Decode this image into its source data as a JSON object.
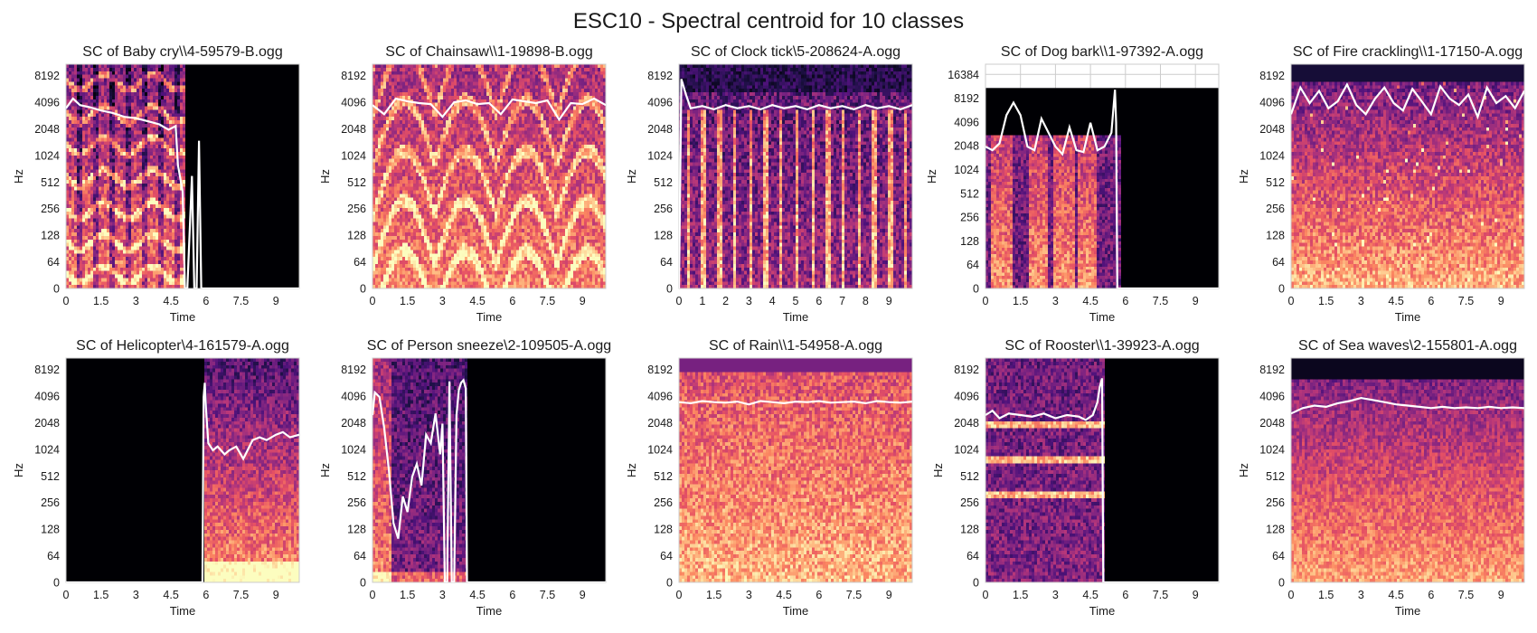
{
  "figure": {
    "title": "ESC10 - Spectral centroid for 10 classes",
    "colors": {
      "centroid_line": "#ffffff",
      "background": "#000000",
      "grid": "#cccccc"
    },
    "colormap": "magma"
  },
  "chart_data": [
    {
      "type": "heatmap",
      "title": "SC of Baby cry\\\\4-59579-B.ogg",
      "xlabel": "Time",
      "ylabel": "Hz",
      "xticks": [
        "0",
        "1.5",
        "3",
        "4.5",
        "6",
        "7.5",
        "9"
      ],
      "xtick_values": [
        0,
        1.5,
        3,
        4.5,
        6,
        7.5,
        9
      ],
      "yticks": [
        "0",
        "64",
        "128",
        "256",
        "512",
        "1024",
        "2048",
        "4096",
        "8192"
      ],
      "xlim": [
        0,
        10
      ],
      "ylim_hz": [
        0,
        11025
      ],
      "signal_end": 5.0,
      "grid": false,
      "style": "harmonic",
      "centroid": {
        "x": [
          0,
          0.3,
          0.6,
          1,
          1.5,
          2,
          2.5,
          3,
          3.5,
          4,
          4.4,
          4.7,
          4.8,
          5.0,
          5.1,
          5.2,
          5.4,
          5.5,
          5.6,
          5.7,
          5.8,
          5.9,
          10
        ],
        "y": [
          3500,
          4500,
          3800,
          3600,
          3300,
          3100,
          2800,
          2700,
          2500,
          2300,
          2000,
          2200,
          800,
          400,
          0,
          0,
          600,
          0,
          0,
          1500,
          0,
          0,
          0
        ]
      }
    },
    {
      "type": "heatmap",
      "title": "SC of Chainsaw\\\\1-19898-B.ogg",
      "xlabel": "Time",
      "ylabel": "Hz",
      "xticks": [
        "0",
        "1.5",
        "3",
        "4.5",
        "6",
        "7.5",
        "9"
      ],
      "xtick_values": [
        0,
        1.5,
        3,
        4.5,
        6,
        7.5,
        9
      ],
      "yticks": [
        "0",
        "64",
        "128",
        "256",
        "512",
        "1024",
        "2048",
        "4096",
        "8192"
      ],
      "xlim": [
        0,
        10
      ],
      "ylim_hz": [
        0,
        11025
      ],
      "signal_end": 10.0,
      "grid": false,
      "style": "chainsaw",
      "centroid": {
        "x": [
          0,
          0.5,
          1,
          1.5,
          2,
          2.5,
          3,
          3.5,
          4,
          4.5,
          5,
          5.5,
          6,
          6.5,
          7,
          7.5,
          8,
          8.5,
          9,
          9.5,
          10
        ],
        "y": [
          3800,
          3000,
          4500,
          4200,
          4000,
          3900,
          2800,
          4100,
          4300,
          3900,
          4000,
          3000,
          4400,
          4200,
          4000,
          4300,
          2600,
          4000,
          3900,
          4500,
          3800
        ]
      }
    },
    {
      "type": "heatmap",
      "title": "SC of Clock tick\\5-208624-A.ogg",
      "xlabel": "Time",
      "ylabel": "Hz",
      "xticks": [
        "0",
        "1",
        "2",
        "3",
        "4",
        "5",
        "6",
        "7",
        "8",
        "9"
      ],
      "xtick_values": [
        0,
        1,
        2,
        3,
        4,
        5,
        6,
        7,
        8,
        9
      ],
      "yticks": [
        "0",
        "64",
        "128",
        "256",
        "512",
        "1024",
        "2048",
        "4096",
        "8192"
      ],
      "xlim": [
        0,
        10
      ],
      "ylim_hz": [
        0,
        11025
      ],
      "signal_end": 10.0,
      "grid": false,
      "style": "clock",
      "centroid": {
        "x": [
          0,
          0.1,
          0.3,
          0.5,
          1,
          1.5,
          2,
          2.5,
          3,
          3.5,
          4,
          4.5,
          5,
          5.5,
          6,
          6.5,
          7,
          7.5,
          8,
          8.5,
          9,
          9.5,
          10
        ],
        "y": [
          0,
          7500,
          5000,
          3500,
          3700,
          3400,
          3800,
          3500,
          3700,
          3400,
          3800,
          3500,
          3700,
          3400,
          3800,
          3500,
          3700,
          3400,
          3800,
          3500,
          3700,
          3400,
          3800
        ]
      }
    },
    {
      "type": "heatmap",
      "title": "SC of Dog bark\\\\1-97392-A.ogg",
      "xlabel": "Time",
      "ylabel": "Hz",
      "xticks": [
        "0",
        "1.5",
        "3",
        "4.5",
        "6",
        "7.5",
        "9"
      ],
      "xtick_values": [
        0,
        1.5,
        3,
        4.5,
        6,
        7.5,
        9
      ],
      "yticks": [
        "0",
        "64",
        "128",
        "256",
        "512",
        "1024",
        "2048",
        "4096",
        "8192",
        "16384"
      ],
      "xlim": [
        0,
        10
      ],
      "ylim_hz": [
        0,
        22050
      ],
      "signal_end": 5.7,
      "grid": true,
      "style": "dog",
      "centroid": {
        "x": [
          0,
          0.3,
          0.6,
          0.9,
          1.2,
          1.5,
          1.8,
          2.1,
          2.4,
          2.7,
          3.0,
          3.3,
          3.6,
          3.9,
          4.2,
          4.5,
          4.8,
          5.1,
          5.4,
          5.55,
          5.6,
          5.65,
          5.7,
          10
        ],
        "y": [
          2000,
          1800,
          2200,
          5000,
          7200,
          5000,
          2000,
          1800,
          4500,
          3000,
          2000,
          1600,
          3500,
          1800,
          1700,
          4000,
          1800,
          2000,
          3000,
          10500,
          4000,
          0,
          0,
          0
        ]
      }
    },
    {
      "type": "heatmap",
      "title": "SC of Fire crackling\\\\1-17150-A.ogg",
      "xlabel": "Time",
      "ylabel": "Hz",
      "xticks": [
        "0",
        "1.5",
        "3",
        "4.5",
        "6",
        "7.5",
        "9"
      ],
      "xtick_values": [
        0,
        1.5,
        3,
        4.5,
        6,
        7.5,
        9
      ],
      "yticks": [
        "0",
        "64",
        "128",
        "256",
        "512",
        "1024",
        "2048",
        "4096",
        "8192"
      ],
      "xlim": [
        0,
        10
      ],
      "ylim_hz": [
        0,
        11025
      ],
      "signal_end": 10.0,
      "grid": false,
      "style": "fire",
      "centroid": {
        "x": [
          0,
          0.4,
          0.8,
          1.2,
          1.6,
          2,
          2.4,
          2.8,
          3.2,
          3.6,
          4,
          4.4,
          4.8,
          5.2,
          5.6,
          6,
          6.4,
          6.8,
          7.2,
          7.6,
          8,
          8.4,
          8.8,
          9.2,
          9.6,
          10
        ],
        "y": [
          3000,
          6000,
          4000,
          5500,
          3500,
          4200,
          6500,
          3800,
          3000,
          4500,
          6000,
          4000,
          3300,
          5800,
          4200,
          3000,
          6200,
          4500,
          3800,
          5000,
          2800,
          6000,
          4000,
          4800,
          3500,
          5500
        ]
      }
    },
    {
      "type": "heatmap",
      "title": "SC of Helicopter\\4-161579-A.ogg",
      "xlabel": "Time",
      "ylabel": "Hz",
      "xticks": [
        "0",
        "1.5",
        "3",
        "4.5",
        "6",
        "7.5",
        "9"
      ],
      "xtick_values": [
        0,
        1.5,
        3,
        4.5,
        6,
        7.5,
        9
      ],
      "yticks": [
        "0",
        "64",
        "128",
        "256",
        "512",
        "1024",
        "2048",
        "4096",
        "8192"
      ],
      "xlim": [
        0,
        10
      ],
      "ylim_hz": [
        0,
        11025
      ],
      "signal_end": 0,
      "signal_start": 5.9,
      "grid": false,
      "style": "helicopter",
      "centroid": {
        "x": [
          0,
          5.85,
          5.9,
          5.95,
          6.0,
          6.1,
          6.3,
          6.5,
          6.8,
          7,
          7.3,
          7.6,
          8,
          8.3,
          8.6,
          9,
          9.3,
          9.6,
          10
        ],
        "y": [
          0,
          0,
          4000,
          5800,
          3000,
          1200,
          1000,
          1100,
          900,
          1000,
          1100,
          800,
          1300,
          1400,
          1300,
          1500,
          1600,
          1400,
          1500
        ]
      }
    },
    {
      "type": "heatmap",
      "title": "SC of Person sneeze\\2-109505-A.ogg",
      "xlabel": "Time",
      "ylabel": "Hz",
      "xticks": [
        "0",
        "1.5",
        "3",
        "4.5",
        "6",
        "7.5",
        "9"
      ],
      "xtick_values": [
        0,
        1.5,
        3,
        4.5,
        6,
        7.5,
        9
      ],
      "yticks": [
        "0",
        "64",
        "128",
        "256",
        "512",
        "1024",
        "2048",
        "4096",
        "8192"
      ],
      "xlim": [
        0,
        10
      ],
      "ylim_hz": [
        0,
        11025
      ],
      "signal_end": 4.0,
      "grid": false,
      "style": "sneeze",
      "centroid": {
        "x": [
          0,
          0.1,
          0.3,
          0.5,
          0.7,
          0.9,
          1.1,
          1.3,
          1.5,
          1.7,
          1.9,
          2.1,
          2.3,
          2.5,
          2.7,
          2.9,
          3.0,
          3.1,
          3.2,
          3.3,
          3.4,
          3.5,
          3.6,
          3.7,
          3.8,
          3.9,
          4.0,
          4.05,
          4.1,
          10
        ],
        "y": [
          2500,
          4500,
          4000,
          1800,
          600,
          150,
          100,
          300,
          200,
          500,
          700,
          400,
          1500,
          1200,
          2600,
          900,
          2000,
          0,
          0,
          6000,
          0,
          0,
          2500,
          4800,
          5800,
          6200,
          5000,
          0,
          0,
          0
        ]
      }
    },
    {
      "type": "heatmap",
      "title": "SC of Rain\\\\1-54958-A.ogg",
      "xlabel": "Time",
      "ylabel": "Hz",
      "xticks": [
        "0",
        "1.5",
        "3",
        "4.5",
        "6",
        "7.5",
        "9"
      ],
      "xtick_values": [
        0,
        1.5,
        3,
        4.5,
        6,
        7.5,
        9
      ],
      "yticks": [
        "0",
        "64",
        "128",
        "256",
        "512",
        "1024",
        "2048",
        "4096",
        "8192"
      ],
      "xlim": [
        0,
        10
      ],
      "ylim_hz": [
        0,
        11025
      ],
      "signal_end": 10.0,
      "grid": false,
      "style": "rain",
      "centroid": {
        "x": [
          0,
          0.5,
          1,
          1.5,
          2,
          2.5,
          3,
          3.5,
          4,
          4.5,
          5,
          5.5,
          6,
          6.5,
          7,
          7.5,
          8,
          8.5,
          9,
          9.5,
          10
        ],
        "y": [
          3500,
          3400,
          3600,
          3500,
          3450,
          3550,
          3300,
          3600,
          3500,
          3400,
          3550,
          3500,
          3600,
          3450,
          3500,
          3550,
          3400,
          3600,
          3500,
          3450,
          3550
        ]
      }
    },
    {
      "type": "heatmap",
      "title": "SC of Rooster\\\\1-39923-A.ogg",
      "xlabel": "Time",
      "ylabel": "Hz",
      "xticks": [
        "0",
        "1.5",
        "3",
        "4.5",
        "6",
        "7.5",
        "9"
      ],
      "xtick_values": [
        0,
        1.5,
        3,
        4.5,
        6,
        7.5,
        9
      ],
      "yticks": [
        "0",
        "64",
        "128",
        "256",
        "512",
        "1024",
        "2048",
        "4096",
        "8192"
      ],
      "xlim": [
        0,
        10
      ],
      "ylim_hz": [
        0,
        11025
      ],
      "signal_end": 5.0,
      "grid": false,
      "style": "rooster",
      "centroid": {
        "x": [
          0,
          0.3,
          0.6,
          1,
          1.5,
          2,
          2.5,
          3,
          3.5,
          4,
          4.3,
          4.6,
          4.8,
          4.9,
          5.0,
          5.05,
          5.1,
          10
        ],
        "y": [
          2500,
          2800,
          2300,
          2600,
          2500,
          2400,
          2600,
          2300,
          2500,
          2400,
          2200,
          2500,
          3500,
          5200,
          6500,
          0,
          0,
          0
        ]
      }
    },
    {
      "type": "heatmap",
      "title": "SC of Sea waves\\2-155801-A.ogg",
      "xlabel": "Time",
      "ylabel": "Hz",
      "xticks": [
        "0",
        "1.5",
        "3",
        "4.5",
        "6",
        "7.5",
        "9"
      ],
      "xtick_values": [
        0,
        1.5,
        3,
        4.5,
        6,
        7.5,
        9
      ],
      "yticks": [
        "0",
        "64",
        "128",
        "256",
        "512",
        "1024",
        "2048",
        "4096",
        "8192"
      ],
      "xlim": [
        0,
        10
      ],
      "ylim_hz": [
        0,
        11025
      ],
      "signal_end": 10.0,
      "grid": false,
      "style": "waves",
      "centroid": {
        "x": [
          0,
          0.5,
          1,
          1.5,
          2,
          2.5,
          3,
          3.5,
          4,
          4.5,
          5,
          5.5,
          6,
          6.5,
          7,
          7.5,
          8,
          8.5,
          9,
          9.5,
          10
        ],
        "y": [
          2600,
          3000,
          3200,
          3100,
          3400,
          3600,
          3900,
          3700,
          3500,
          3300,
          3200,
          3100,
          3000,
          3100,
          3000,
          3050,
          3000,
          3100,
          3000,
          3050,
          3000
        ]
      }
    }
  ]
}
